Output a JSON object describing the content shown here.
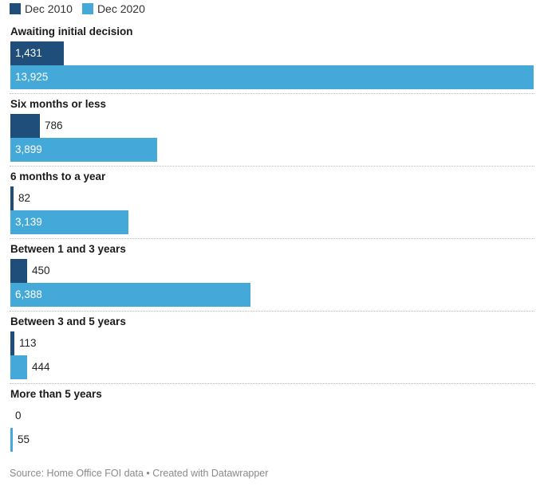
{
  "legend": [
    {
      "name": "Dec 2010",
      "color": "#1e4e79"
    },
    {
      "name": "Dec 2020",
      "color": "#44a8d8"
    }
  ],
  "chart_data": {
    "type": "bar",
    "orientation": "horizontal",
    "categories": [
      "Awaiting initial decision",
      "Six months or less",
      "6 months to a year",
      "Between 1 and 3 years",
      "Between 3 and 5 years",
      "More than 5 years"
    ],
    "series": [
      {
        "name": "Dec 2010",
        "values": [
          1431,
          786,
          82,
          450,
          113,
          0
        ],
        "labels": [
          "1,431",
          "786",
          "82",
          "450",
          "113",
          "0"
        ],
        "color": "#1e4e79"
      },
      {
        "name": "Dec 2020",
        "values": [
          13925,
          3899,
          3139,
          6388,
          444,
          55
        ],
        "labels": [
          "13,925",
          "3,899",
          "3,139",
          "6,388",
          "444",
          "55"
        ],
        "color": "#44a8d8"
      }
    ],
    "xlim": [
      0,
      13925
    ],
    "legend_position": "top-left",
    "grid": false
  },
  "footer": {
    "source": "Source: Home Office FOI data • Created with Datawrapper"
  }
}
